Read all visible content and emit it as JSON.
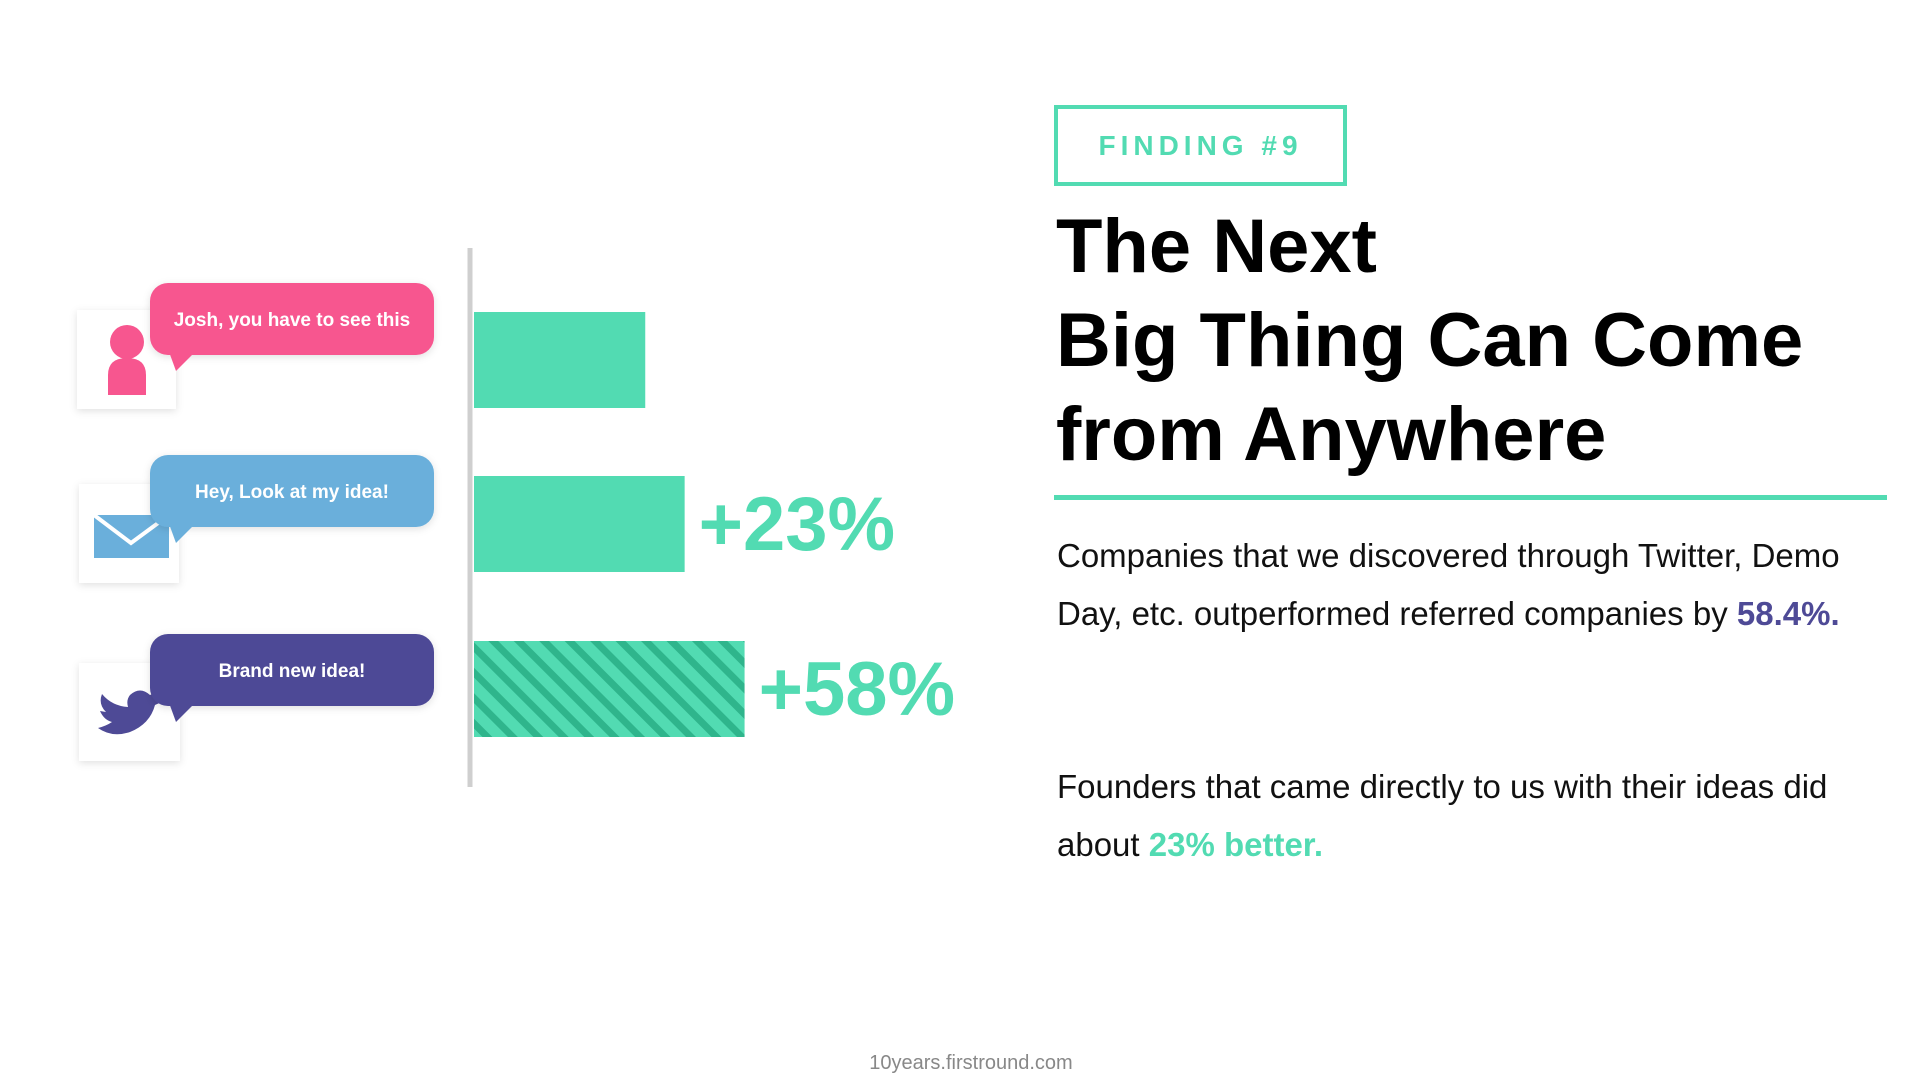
{
  "chart_data": {
    "type": "bar",
    "orientation": "horizontal",
    "categories": [
      "Josh, you have to see this",
      "Hey, Look at my idea!",
      "Brand new idea!"
    ],
    "values": [
      0,
      23,
      58
    ],
    "value_labels": [
      null,
      "+23%",
      "+58%"
    ],
    "color": "#52dbb2",
    "hatched": [
      false,
      false,
      true
    ],
    "bubble_colors": [
      "#f7568f",
      "#6aafdb",
      "#4e4a96"
    ],
    "xlim": [
      -100,
      60
    ]
  },
  "finding": "FINDING #9",
  "title_lines": [
    "The Next",
    "Big Thing Can Come",
    "from Anywhere"
  ],
  "paragraphs": [
    {
      "text": "Companies that we discovered through Twitter, Demo Day, etc. outperformed referred companies by ",
      "highlight": "58.4%.",
      "highlight_color": "#4e4a96"
    },
    {
      "text": "Founders that came directly to us with their ideas did about ",
      "highlight": "23% better.",
      "highlight_color": "#52dbb2"
    }
  ],
  "footer": "10years.firstround.com"
}
